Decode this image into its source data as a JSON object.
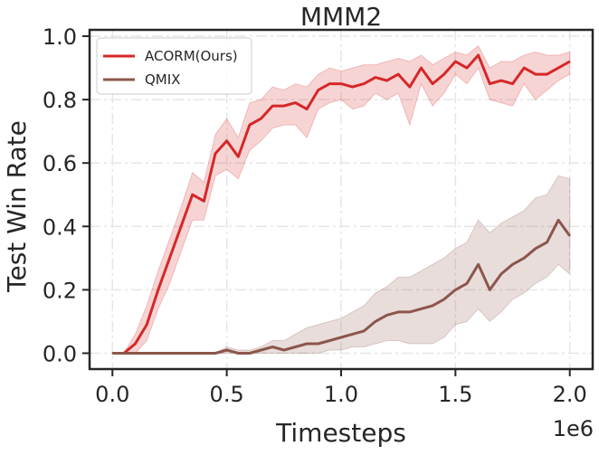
{
  "chart_data": {
    "type": "line",
    "title": "MMM2",
    "xlabel": "Timesteps",
    "ylabel": "Test Win Rate",
    "x_multiplier_label": "1e6",
    "xlim": [
      -0.1,
      2.1
    ],
    "ylim": [
      -0.05,
      1.02
    ],
    "x_ticks": [
      0.0,
      0.5,
      1.0,
      1.5,
      2.0
    ],
    "x_tick_labels": [
      "0.0",
      "0.5",
      "1.0",
      "1.5",
      "2.0"
    ],
    "y_ticks": [
      0.0,
      0.2,
      0.4,
      0.6,
      0.8,
      1.0
    ],
    "y_tick_labels": [
      "0.0",
      "0.2",
      "0.4",
      "0.6",
      "0.8",
      "1.0"
    ],
    "grid": true,
    "legend_position": "top-left",
    "series": [
      {
        "name": "ACORM(Ours)",
        "color": "#d62728",
        "x": [
          0.0,
          0.05,
          0.1,
          0.15,
          0.2,
          0.25,
          0.3,
          0.35,
          0.4,
          0.45,
          0.5,
          0.55,
          0.6,
          0.65,
          0.7,
          0.75,
          0.8,
          0.85,
          0.9,
          0.95,
          1.0,
          1.05,
          1.1,
          1.15,
          1.2,
          1.25,
          1.3,
          1.35,
          1.4,
          1.45,
          1.5,
          1.55,
          1.6,
          1.65,
          1.7,
          1.75,
          1.8,
          1.85,
          1.9,
          1.95,
          2.0
        ],
        "y": [
          0.0,
          0.0,
          0.03,
          0.09,
          0.2,
          0.3,
          0.4,
          0.5,
          0.48,
          0.63,
          0.67,
          0.62,
          0.72,
          0.74,
          0.78,
          0.78,
          0.79,
          0.77,
          0.83,
          0.85,
          0.85,
          0.84,
          0.85,
          0.87,
          0.86,
          0.88,
          0.84,
          0.9,
          0.85,
          0.88,
          0.92,
          0.9,
          0.94,
          0.85,
          0.86,
          0.85,
          0.9,
          0.88,
          0.88,
          0.9,
          0.92
        ],
        "y_lower": [
          0.0,
          0.0,
          0.0,
          0.04,
          0.14,
          0.22,
          0.32,
          0.42,
          0.42,
          0.56,
          0.58,
          0.55,
          0.64,
          0.67,
          0.71,
          0.72,
          0.72,
          0.68,
          0.77,
          0.79,
          0.8,
          0.77,
          0.78,
          0.82,
          0.8,
          0.82,
          0.72,
          0.85,
          0.78,
          0.82,
          0.88,
          0.85,
          0.9,
          0.8,
          0.79,
          0.78,
          0.85,
          0.8,
          0.83,
          0.86,
          0.88
        ],
        "y_upper": [
          0.0,
          0.0,
          0.06,
          0.15,
          0.26,
          0.36,
          0.46,
          0.57,
          0.54,
          0.69,
          0.74,
          0.68,
          0.79,
          0.8,
          0.84,
          0.83,
          0.85,
          0.84,
          0.88,
          0.9,
          0.89,
          0.9,
          0.91,
          0.91,
          0.92,
          0.93,
          0.92,
          0.94,
          0.91,
          0.93,
          0.95,
          0.94,
          0.97,
          0.9,
          0.92,
          0.92,
          0.94,
          0.95,
          0.94,
          0.94,
          0.95
        ]
      },
      {
        "name": "QMIX",
        "color": "#8c564b",
        "x": [
          0.0,
          0.05,
          0.1,
          0.15,
          0.2,
          0.25,
          0.3,
          0.35,
          0.4,
          0.45,
          0.5,
          0.55,
          0.6,
          0.65,
          0.7,
          0.75,
          0.8,
          0.85,
          0.9,
          0.95,
          1.0,
          1.05,
          1.1,
          1.15,
          1.2,
          1.25,
          1.3,
          1.35,
          1.4,
          1.45,
          1.5,
          1.55,
          1.6,
          1.65,
          1.7,
          1.75,
          1.8,
          1.85,
          1.9,
          1.95,
          2.0
        ],
        "y": [
          0.0,
          0.0,
          0.0,
          0.0,
          0.0,
          0.0,
          0.0,
          0.0,
          0.0,
          0.0,
          0.01,
          0.0,
          0.0,
          0.01,
          0.02,
          0.01,
          0.02,
          0.03,
          0.03,
          0.04,
          0.05,
          0.06,
          0.07,
          0.1,
          0.12,
          0.13,
          0.13,
          0.14,
          0.15,
          0.17,
          0.2,
          0.22,
          0.28,
          0.2,
          0.25,
          0.28,
          0.3,
          0.33,
          0.35,
          0.42,
          0.37
        ],
        "y_lower": [
          0.0,
          0.0,
          0.0,
          0.0,
          0.0,
          0.0,
          0.0,
          0.0,
          0.0,
          0.0,
          0.0,
          0.0,
          0.0,
          0.0,
          0.0,
          0.0,
          0.0,
          0.0,
          0.0,
          0.01,
          0.01,
          0.02,
          0.02,
          0.03,
          0.04,
          0.04,
          0.03,
          0.03,
          0.03,
          0.05,
          0.09,
          0.1,
          0.14,
          0.1,
          0.13,
          0.17,
          0.19,
          0.22,
          0.24,
          0.28,
          0.25
        ],
        "y_upper": [
          0.0,
          0.0,
          0.0,
          0.0,
          0.0,
          0.0,
          0.0,
          0.0,
          0.0,
          0.0,
          0.02,
          0.01,
          0.01,
          0.02,
          0.04,
          0.04,
          0.06,
          0.08,
          0.09,
          0.1,
          0.11,
          0.13,
          0.15,
          0.19,
          0.21,
          0.24,
          0.24,
          0.26,
          0.28,
          0.3,
          0.33,
          0.35,
          0.42,
          0.38,
          0.41,
          0.43,
          0.45,
          0.49,
          0.5,
          0.56,
          0.55
        ]
      }
    ]
  }
}
